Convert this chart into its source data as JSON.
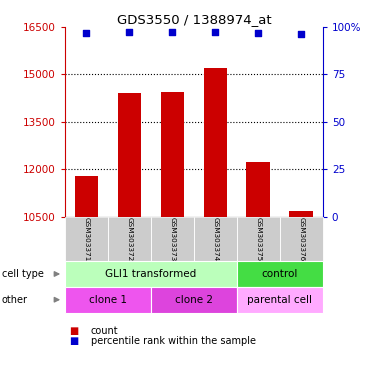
{
  "title": "GDS3550 / 1388974_at",
  "samples": [
    "GSM303371",
    "GSM303372",
    "GSM303373",
    "GSM303374",
    "GSM303375",
    "GSM303376"
  ],
  "bar_values": [
    11800,
    14400,
    14450,
    15200,
    12250,
    10700
  ],
  "percentile_values": [
    16300,
    16350,
    16350,
    16350,
    16300,
    16280
  ],
  "ylim": [
    10500,
    16500
  ],
  "yticks": [
    10500,
    12000,
    13500,
    15000,
    16500
  ],
  "right_yticks": [
    0,
    25,
    50,
    75,
    100
  ],
  "bar_color": "#cc0000",
  "percentile_color": "#0000cc",
  "cell_type_row": [
    {
      "label": "GLI1 transformed",
      "span": [
        0,
        4
      ],
      "color": "#bbffbb"
    },
    {
      "label": "control",
      "span": [
        4,
        6
      ],
      "color": "#44dd44"
    }
  ],
  "other_row": [
    {
      "label": "clone 1",
      "span": [
        0,
        2
      ],
      "color": "#ee55ee"
    },
    {
      "label": "clone 2",
      "span": [
        2,
        4
      ],
      "color": "#dd44dd"
    },
    {
      "label": "parental cell",
      "span": [
        4,
        6
      ],
      "color": "#ffaaff"
    }
  ],
  "legend_count_color": "#cc0000",
  "legend_percentile_color": "#0000cc",
  "sample_box_color": "#cccccc",
  "grid_dotted_yticks": [
    12000,
    13500,
    15000
  ]
}
